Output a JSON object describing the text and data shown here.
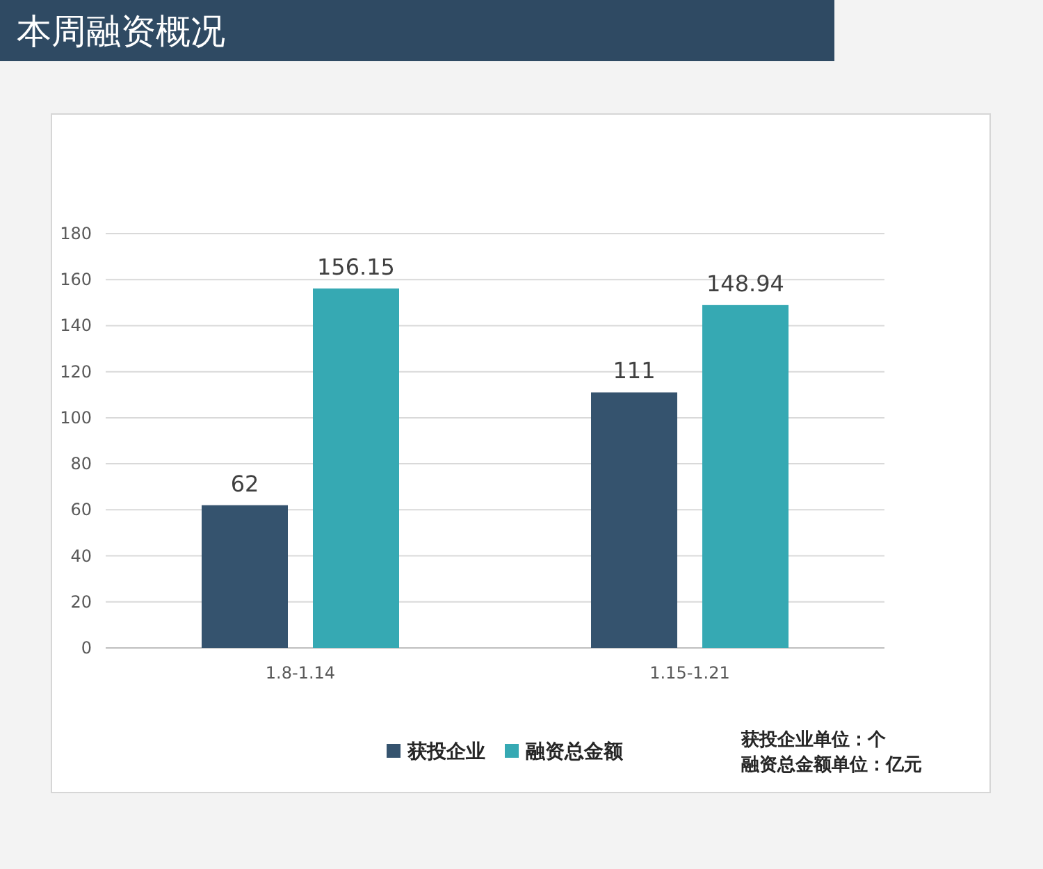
{
  "chart_data": {
    "type": "bar",
    "title": "本周融资概况",
    "categories": [
      "1.8-1.14",
      "1.15-1.21"
    ],
    "series": [
      {
        "name": "获投企业",
        "color": "#35536e",
        "values": [
          62,
          111
        ]
      },
      {
        "name": "融资总金额",
        "color": "#36a9b3",
        "values": [
          156.15,
          148.94
        ]
      }
    ],
    "ylim": [
      0,
      180
    ],
    "yticks": [
      0,
      20,
      40,
      60,
      80,
      100,
      120,
      140,
      160,
      180
    ],
    "grid": "y",
    "legend": "bottom",
    "data_labels": true,
    "annotations": [
      "获投企业单位：个",
      "融资总金额单位：亿元"
    ]
  }
}
